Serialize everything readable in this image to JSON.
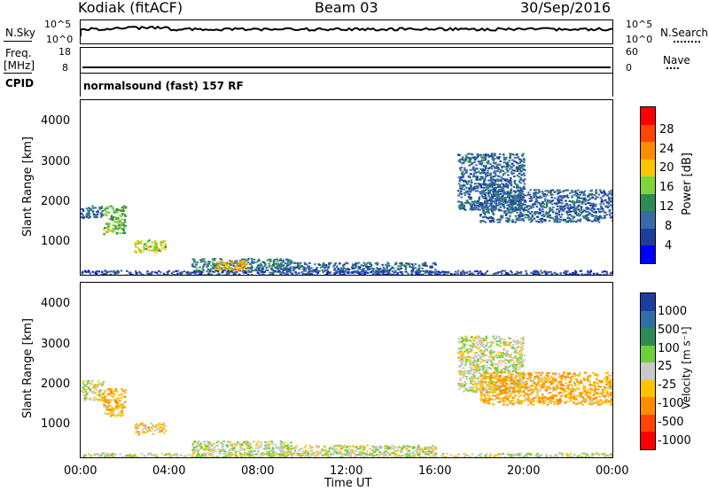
{
  "header": {
    "station": "Kodiak (fitACF)",
    "beam": "Beam 03",
    "date": "30/Sep/2016"
  },
  "top_panels": {
    "nsky_label": "N.Sky",
    "nsky_ticks": [
      "10^5",
      "10^0"
    ],
    "nsearch_label": "N.Search",
    "nsearch_ticks": [
      "10^5",
      "10^0"
    ],
    "freq_label": "Freq.",
    "freq_unit": "[MHz]",
    "freq_ticks": [
      "18",
      "8"
    ],
    "nave_label": "Nave",
    "nave_ticks": [
      "60",
      "0"
    ],
    "cpid_label": "CPID",
    "cpid_value": "normalsound (fast) 157 RF"
  },
  "power_panel": {
    "ylabel": "Slant Range [km]",
    "yticks": [
      "4000",
      "3000",
      "2000",
      "1000"
    ],
    "colorbar_label": "Power [dB]",
    "colorbar_ticks": [
      "28",
      "24",
      "20",
      "16",
      "12",
      "8",
      "4"
    ],
    "colorbar_colors": [
      "#ff0000",
      "#ff4500",
      "#ff8c00",
      "#ffc400",
      "#7fd43a",
      "#2e8b57",
      "#3c6aa8",
      "#1d3f9c",
      "#0000ff"
    ]
  },
  "velocity_panel": {
    "ylabel": "Slant Range [km]",
    "yticks": [
      "4000",
      "3000",
      "2000",
      "1000"
    ],
    "colorbar_label": "Velocity [m s⁻¹]",
    "colorbar_ticks": [
      "1000",
      "500",
      "100",
      "25",
      "-25",
      "-100",
      "-500",
      "-1000"
    ],
    "colorbar_colors": [
      "#1c3f9e",
      "#2f6fa8",
      "#2e8b57",
      "#6fcf3a",
      "#c8c8c8",
      "#ffc400",
      "#ff8c00",
      "#ff4500",
      "#ff0000"
    ]
  },
  "xaxis": {
    "ticks": [
      "00:00",
      "04:00",
      "08:00",
      "12:00",
      "16:00",
      "20:00",
      "00:00"
    ],
    "label": "Time UT"
  },
  "chart_data": [
    {
      "type": "heatmap",
      "panel": "power",
      "xlabel": "Time UT",
      "ylabel": "Slant Range [km]",
      "xlim": [
        0,
        24
      ],
      "ylim": [
        180,
        4500
      ],
      "colorbar": {
        "label": "Power [dB]",
        "range": [
          0,
          30
        ]
      },
      "echo_regions": [
        {
          "t": [
            0.0,
            1.0
          ],
          "r": [
            1600,
            1900
          ],
          "value": 8
        },
        {
          "t": [
            1.0,
            2.0
          ],
          "r": [
            1200,
            1900
          ],
          "value": 14
        },
        {
          "t": [
            2.4,
            3.8
          ],
          "r": [
            750,
            1050
          ],
          "value": 16
        },
        {
          "t": [
            5.0,
            9.5
          ],
          "r": [
            250,
            600
          ],
          "value": 10
        },
        {
          "t": [
            6.0,
            7.5
          ],
          "r": [
            300,
            550
          ],
          "value": 20
        },
        {
          "t": [
            9.0,
            16.0
          ],
          "r": [
            250,
            500
          ],
          "value": 8
        },
        {
          "t": [
            17.0,
            20.0
          ],
          "r": [
            1800,
            3200
          ],
          "value": 8
        },
        {
          "t": [
            18.0,
            24.0
          ],
          "r": [
            1500,
            2300
          ],
          "value": 8
        },
        {
          "t": [
            0.0,
            24.0
          ],
          "r": [
            180,
            300
          ],
          "value": 6
        }
      ]
    },
    {
      "type": "heatmap",
      "panel": "velocity",
      "xlabel": "Time UT",
      "ylabel": "Slant Range [km]",
      "xlim": [
        0,
        24
      ],
      "ylim": [
        180,
        4500
      ],
      "colorbar": {
        "label": "Velocity [m s⁻¹]",
        "range": [
          -1000,
          1000
        ]
      },
      "echo_regions": [
        {
          "t": [
            0.0,
            1.0
          ],
          "r": [
            1600,
            2100
          ],
          "value": -50
        },
        {
          "t": [
            1.0,
            2.0
          ],
          "r": [
            1200,
            1900
          ],
          "value": -300
        },
        {
          "t": [
            2.4,
            3.8
          ],
          "r": [
            750,
            1050
          ],
          "value": -150
        },
        {
          "t": [
            5.0,
            9.5
          ],
          "r": [
            250,
            600
          ],
          "value": 60
        },
        {
          "t": [
            9.0,
            16.0
          ],
          "r": [
            250,
            500
          ],
          "value": 10
        },
        {
          "t": [
            17.0,
            20.0
          ],
          "r": [
            1800,
            3200
          ],
          "value": 0
        },
        {
          "t": [
            18.0,
            24.0
          ],
          "r": [
            1500,
            2300
          ],
          "value": -300
        },
        {
          "t": [
            0.0,
            24.0
          ],
          "r": [
            180,
            300
          ],
          "value": 20
        }
      ]
    }
  ]
}
